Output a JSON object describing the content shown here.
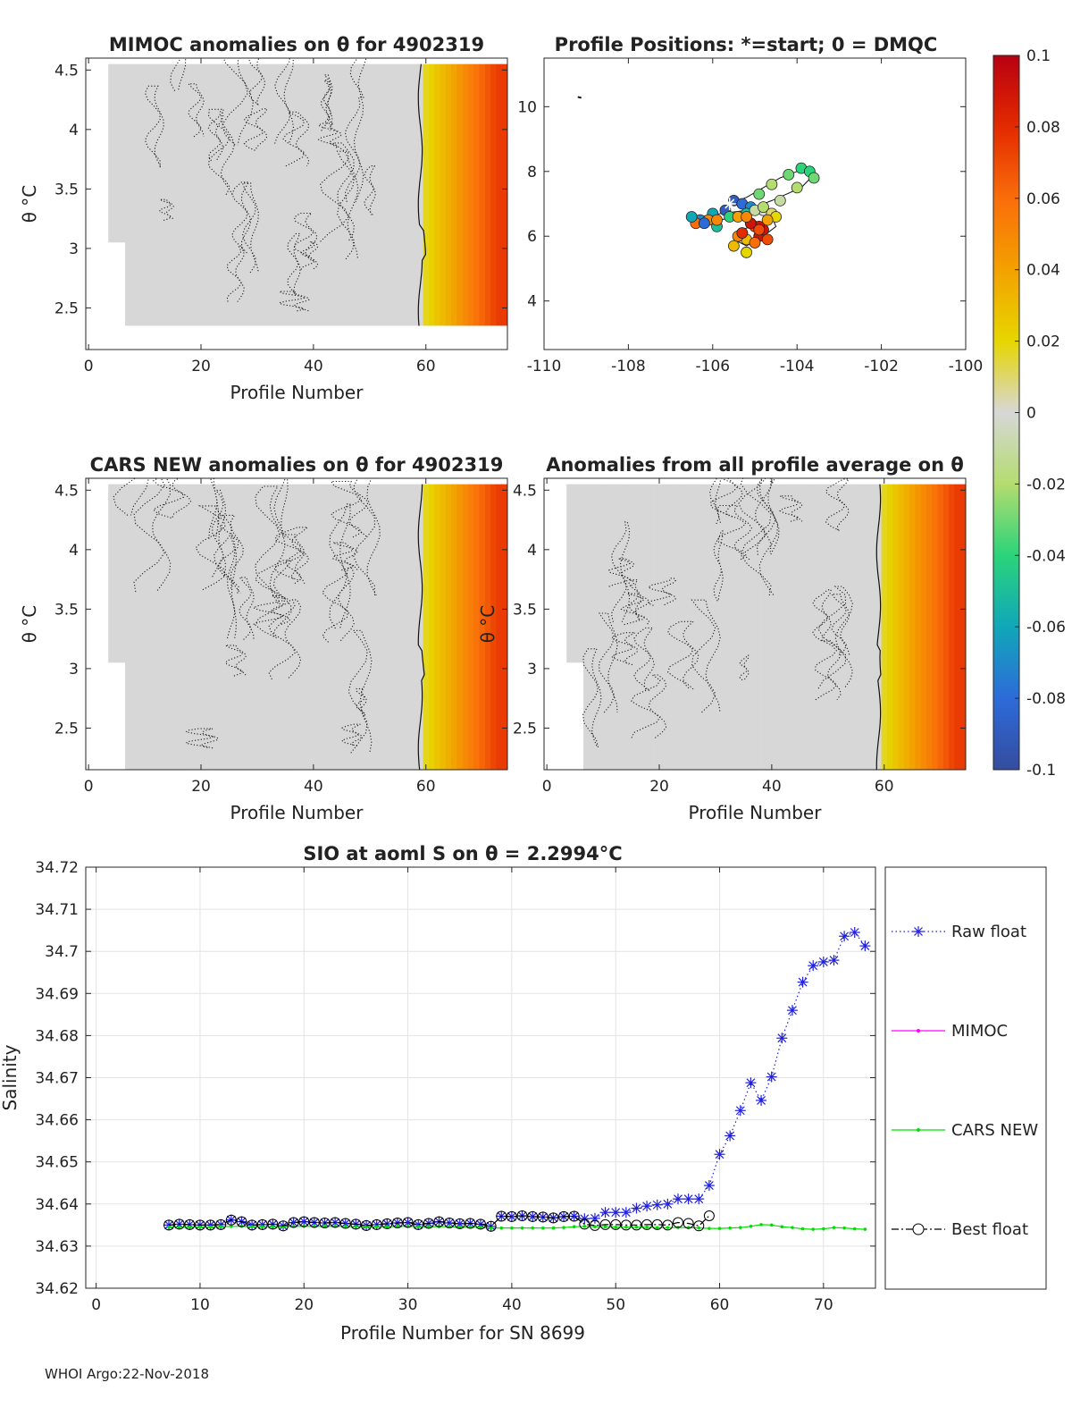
{
  "footer": "WHOI Argo:22-Nov-2018",
  "chart_data": [
    {
      "type": "heatmap",
      "title": "MIMOC anomalies on θ  for 4902319",
      "xlabel": "Profile Number",
      "ylabel": "θ °C",
      "xlim": [
        -0.5,
        74.5
      ],
      "ylim": [
        2.15,
        4.6
      ],
      "xticks": [
        0,
        20,
        40,
        60
      ],
      "yticks": [
        2.5,
        3,
        3.5,
        4,
        4.5
      ],
      "data_profile_range": [
        4,
        74
      ],
      "theta_range": [
        2.35,
        4.55
      ],
      "anomaly_gradient_start_profile": 59.5,
      "anomaly_max_value": 0.075,
      "zero_contour_profile": 59.5
    },
    {
      "type": "scatter",
      "title": "Profile Positions: *=start; 0 = DMQC",
      "xlim": [
        -110,
        -100
      ],
      "ylim": [
        2.5,
        11.5
      ],
      "xticks": [
        -110,
        -108,
        -106,
        -104,
        -102,
        -100
      ],
      "yticks": [
        4,
        6,
        8,
        10
      ],
      "start_marker": {
        "lon": -105.6,
        "lat": 7.0
      },
      "outlier_point": {
        "lon": -109.2,
        "lat": 10.3
      },
      "track_lon": [
        -105.6,
        -105.2,
        -104.8,
        -104.4,
        -104.0,
        -103.7,
        -103.6,
        -103.9,
        -104.6,
        -105.2,
        -105.8,
        -106.3,
        -106.5,
        -106.2,
        -105.8,
        -105.3,
        -104.9,
        -104.6,
        -104.5,
        -104.8,
        -105.2,
        -105.5,
        -105.3,
        -104.9
      ],
      "track_lat": [
        7.0,
        7.2,
        7.5,
        7.8,
        8.0,
        8.1,
        7.9,
        7.5,
        7.1,
        6.8,
        6.7,
        6.6,
        6.5,
        6.4,
        6.5,
        6.7,
        6.8,
        6.6,
        6.3,
        6.0,
        5.7,
        5.9,
        6.2,
        6.4
      ],
      "profile_lon": [
        -105.5,
        -105.7,
        -105.3,
        -105.1,
        -106.0,
        -106.3,
        -105.9,
        -104.9,
        -104.6,
        -104.2,
        -103.9,
        -103.7,
        -103.6,
        -104.0,
        -104.4,
        -104.8,
        -105.2,
        -105.6,
        -106.1,
        -106.4,
        -106.5,
        -106.2,
        -105.9,
        -105.4,
        -105.0,
        -104.8,
        -104.6,
        -104.5,
        -104.7,
        -105.0,
        -105.3,
        -105.2,
        -104.9,
        -104.8,
        -105.1,
        -105.4,
        -105.5,
        -105.2,
        -105.0,
        -104.7,
        -104.9,
        -105.3,
        -105.1,
        -104.9,
        -105.2
      ],
      "profile_lat": [
        7.1,
        6.8,
        7.0,
        6.9,
        6.7,
        6.5,
        6.3,
        7.3,
        7.6,
        7.9,
        8.1,
        8.0,
        7.8,
        7.5,
        7.1,
        6.8,
        6.7,
        6.6,
        6.5,
        6.4,
        6.6,
        6.4,
        6.5,
        6.6,
        6.8,
        6.9,
        6.7,
        6.6,
        6.5,
        6.3,
        6.1,
        5.9,
        6.0,
        6.2,
        6.4,
        6.0,
        5.7,
        5.5,
        5.8,
        5.9,
        6.3,
        6.1,
        6.4,
        6.2,
        6.6
      ],
      "profile_anom": [
        -0.09,
        -0.09,
        -0.08,
        -0.07,
        -0.06,
        -0.07,
        -0.05,
        -0.03,
        -0.02,
        -0.03,
        -0.04,
        -0.04,
        -0.03,
        -0.02,
        -0.01,
        0.0,
        -0.05,
        -0.04,
        0.05,
        0.06,
        -0.06,
        -0.08,
        0.05,
        0.04,
        -0.01,
        -0.02,
        0.01,
        0.02,
        0.04,
        0.07,
        0.08,
        0.03,
        0.09,
        0.09,
        0.08,
        0.05,
        0.03,
        0.02,
        0.06,
        0.07,
        0.09,
        0.08,
        0.09,
        0.07,
        0.05
      ]
    },
    {
      "type": "heatmap",
      "title": "CARS NEW anomalies on θ for 4902319",
      "xlabel": "Profile Number",
      "ylabel": "θ °C",
      "xlim": [
        -0.5,
        74.5
      ],
      "ylim": [
        2.15,
        4.6
      ],
      "xticks": [
        0,
        20,
        40,
        60
      ],
      "yticks": [
        2.5,
        3,
        3.5,
        4,
        4.5
      ],
      "data_profile_range": [
        4,
        74
      ],
      "theta_range": [
        2.15,
        4.55
      ],
      "anomaly_gradient_start_profile": 59.5,
      "anomaly_max_value": 0.075,
      "zero_contour_profile": 59.5
    },
    {
      "type": "heatmap",
      "title": "Anomalies from all profile average on θ",
      "xlabel": "Profile Number",
      "ylabel": "θ °C",
      "xlim": [
        -0.5,
        74.5
      ],
      "ylim": [
        2.15,
        4.6
      ],
      "xticks": [
        0,
        20,
        40,
        60
      ],
      "yticks": [
        2.5,
        3,
        3.5,
        4,
        4.5
      ],
      "data_profile_range": [
        4,
        74
      ],
      "theta_range": [
        2.15,
        4.55
      ],
      "anomaly_gradient_start_profile": 59.5,
      "anomaly_max_value": 0.075,
      "zero_contour_profile": 59.5
    },
    {
      "type": "line",
      "title": "SIO at aoml S on θ = 2.2994°C",
      "xlabel": "Profile Number for SN 8699",
      "ylabel": "Salinity",
      "xlim": [
        -1,
        75
      ],
      "ylim": [
        34.62,
        34.72
      ],
      "xticks": [
        0,
        10,
        20,
        30,
        40,
        50,
        60,
        70
      ],
      "yticks": [
        34.62,
        34.63,
        34.64,
        34.65,
        34.66,
        34.67,
        34.68,
        34.69,
        34.7,
        34.71,
        34.72
      ],
      "ytick_labels": [
        "34.62",
        "34.63",
        "34.64",
        "34.65",
        "34.66",
        "34.67",
        "34.68",
        "34.69",
        "34.7",
        "34.71",
        "34.72"
      ],
      "grid": true,
      "legend_position": "right",
      "series": [
        {
          "name": "Raw float",
          "color": "#1f1fe0",
          "marker": "asterisk",
          "line": "dotted",
          "x": [
            7,
            8,
            9,
            10,
            11,
            12,
            13,
            14,
            15,
            16,
            17,
            18,
            19,
            20,
            21,
            22,
            23,
            24,
            25,
            26,
            27,
            28,
            29,
            30,
            31,
            32,
            33,
            34,
            35,
            36,
            37,
            38,
            39,
            40,
            41,
            42,
            43,
            44,
            45,
            46,
            47,
            48,
            49,
            50,
            51,
            52,
            53,
            54,
            55,
            56,
            57,
            58,
            59,
            60,
            61,
            62,
            63,
            64,
            65,
            66,
            67,
            68,
            69,
            70,
            71,
            72,
            73,
            74
          ],
          "y": [
            34.635,
            34.6352,
            34.6351,
            34.635,
            34.635,
            34.6351,
            34.6362,
            34.6358,
            34.635,
            34.6351,
            34.6352,
            34.6348,
            34.6356,
            34.6358,
            34.6356,
            34.6355,
            34.6356,
            34.6354,
            34.6352,
            34.6349,
            34.6351,
            34.6353,
            34.6355,
            34.6356,
            34.6351,
            34.6354,
            34.6358,
            34.6355,
            34.6353,
            34.6354,
            34.6352,
            34.6347,
            34.6371,
            34.637,
            34.6372,
            34.637,
            34.6369,
            34.6367,
            34.637,
            34.6371,
            34.6365,
            34.6366,
            34.638,
            34.638,
            34.638,
            34.639,
            34.6395,
            34.6398,
            34.64,
            34.6412,
            34.6412,
            34.6412,
            34.6444,
            34.6518,
            34.6562,
            34.6622,
            34.6688,
            34.6646,
            34.6702,
            34.6794,
            34.686,
            34.6927,
            34.6966,
            34.6975,
            34.6979,
            34.7036,
            34.7045,
            34.7013
          ]
        },
        {
          "name": "MIMOC",
          "color": "#ff00ff",
          "marker": "dot",
          "line": "solid",
          "x": [],
          "y": []
        },
        {
          "name": "CARS NEW",
          "color": "#00e000",
          "marker": "dot",
          "line": "solid",
          "x": [
            7,
            8,
            9,
            10,
            11,
            12,
            13,
            14,
            15,
            16,
            17,
            18,
            19,
            20,
            21,
            22,
            23,
            24,
            25,
            26,
            27,
            28,
            29,
            30,
            31,
            32,
            33,
            34,
            35,
            36,
            37,
            38,
            39,
            40,
            41,
            42,
            43,
            44,
            45,
            46,
            47,
            48,
            49,
            50,
            51,
            52,
            53,
            54,
            55,
            56,
            57,
            58,
            59,
            60,
            61,
            62,
            63,
            64,
            65,
            66,
            67,
            68,
            69,
            70,
            71,
            72,
            73,
            74
          ],
          "y": [
            34.6345,
            34.6345,
            34.6345,
            34.6345,
            34.6345,
            34.6346,
            34.6347,
            34.6347,
            34.6346,
            34.6346,
            34.6346,
            34.6346,
            34.6347,
            34.6347,
            34.6347,
            34.6347,
            34.6347,
            34.6347,
            34.6346,
            34.6346,
            34.6346,
            34.6346,
            34.6347,
            34.6347,
            34.6346,
            34.6346,
            34.6346,
            34.6346,
            34.6345,
            34.6345,
            34.6345,
            34.6343,
            34.6343,
            34.6343,
            34.6343,
            34.6343,
            34.6343,
            34.6343,
            34.6344,
            34.6346,
            34.6347,
            34.6346,
            34.6346,
            34.6345,
            34.6345,
            34.6345,
            34.6345,
            34.6344,
            34.6344,
            34.6344,
            34.6344,
            34.6343,
            34.6342,
            34.6342,
            34.6343,
            34.6344,
            34.6347,
            34.6351,
            34.635,
            34.6346,
            34.6344,
            34.6341,
            34.634,
            34.6341,
            34.6344,
            34.6343,
            34.6341,
            34.634
          ]
        },
        {
          "name": "Best float",
          "color": "#000000",
          "marker": "circle",
          "line": "dashdot",
          "x": [
            7,
            8,
            9,
            10,
            11,
            12,
            13,
            14,
            15,
            16,
            17,
            18,
            19,
            20,
            21,
            22,
            23,
            24,
            25,
            26,
            27,
            28,
            29,
            30,
            31,
            32,
            33,
            34,
            35,
            36,
            37,
            38,
            39,
            40,
            41,
            42,
            43,
            44,
            45,
            46,
            47,
            48,
            49,
            50,
            51,
            52,
            53,
            54,
            55,
            56,
            57,
            58,
            59
          ],
          "y": [
            34.635,
            34.6352,
            34.6351,
            34.635,
            34.635,
            34.6351,
            34.6362,
            34.6358,
            34.635,
            34.6351,
            34.6352,
            34.6348,
            34.6356,
            34.6358,
            34.6356,
            34.6355,
            34.6356,
            34.6354,
            34.6352,
            34.6349,
            34.6351,
            34.6353,
            34.6355,
            34.6356,
            34.6351,
            34.6354,
            34.6358,
            34.6355,
            34.6353,
            34.6354,
            34.6352,
            34.6347,
            34.6371,
            34.637,
            34.6372,
            34.637,
            34.6369,
            34.6367,
            34.637,
            34.6371,
            34.6352,
            34.6349,
            34.6351,
            34.6351,
            34.635,
            34.635,
            34.6351,
            34.6351,
            34.635,
            34.6356,
            34.6354,
            34.6348,
            34.6372
          ]
        }
      ]
    },
    {
      "type": "colorbar",
      "limits": [
        -0.1,
        0.1
      ],
      "ticks": [
        0.1,
        0.08,
        0.06,
        0.04,
        0.02,
        0,
        -0.02,
        -0.04,
        -0.06,
        -0.08,
        -0.1
      ],
      "tick_labels": [
        "0.1",
        "0.08",
        "0.06",
        "0.04",
        "0.02",
        "0",
        "-0.02",
        "-0.04",
        "-0.06",
        "-0.08",
        "-0.1"
      ]
    }
  ]
}
